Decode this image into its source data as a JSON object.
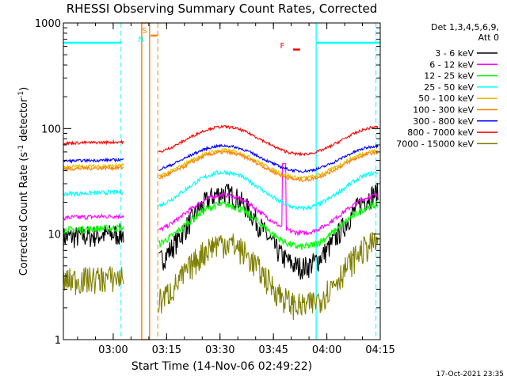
{
  "chart_data": {
    "type": "line",
    "title": "RHESSI Observing Summary Count Rates, Corrected",
    "xlabel": "Start Time (14-Nov-06 02:49:22)",
    "ylabel": "Corrected Count Rate (s",
    "ylabel_sup1": "-1",
    "ylabel_mid": " detector",
    "ylabel_sup2": "-1",
    "ylabel_end": ")",
    "x_range_minutes": [
      -4,
      85
    ],
    "y_range": [
      1,
      1000
    ],
    "y_scale": "log",
    "x_ticks": [
      {
        "t": 10,
        "label": "03:00"
      },
      {
        "t": 25,
        "label": "03:15"
      },
      {
        "t": 40,
        "label": "03:30"
      },
      {
        "t": 55,
        "label": "03:45"
      },
      {
        "t": 70,
        "label": "04:00"
      },
      {
        "t": 85,
        "label": "04:15"
      }
    ],
    "y_ticks": [
      {
        "v": 1,
        "label": "1"
      },
      {
        "v": 10,
        "label": "10"
      },
      {
        "v": 100,
        "label": "100"
      },
      {
        "v": 1000,
        "label": "1000"
      }
    ],
    "legend_header": [
      "Det 1,3,4,5,6,9,",
      "Att 0"
    ],
    "series": [
      {
        "name": "3 - 6 keV",
        "color": "#000000",
        "base": 11,
        "amp": 0.35,
        "noise": 0.25
      },
      {
        "name": "6 - 12 keV",
        "color": "#ff00ff",
        "base": 15.5,
        "amp": 0.18,
        "noise": 0.05
      },
      {
        "name": "12 - 25 keV",
        "color": "#00ff00",
        "base": 12,
        "amp": 0.2,
        "noise": 0.08
      },
      {
        "name": "25 - 50 keV",
        "color": "#00ffff",
        "base": 26,
        "amp": 0.17,
        "noise": 0.05
      },
      {
        "name": "50 - 100 keV",
        "color": "#e6c000",
        "base": 46,
        "amp": 0.13,
        "noise": 0.04
      },
      {
        "name": "100 - 300 keV",
        "color": "#ff8000",
        "base": 44,
        "amp": 0.13,
        "noise": 0.04
      },
      {
        "name": "300 - 800 keV",
        "color": "#0000ff",
        "base": 52,
        "amp": 0.12,
        "noise": 0.03
      },
      {
        "name": "800 - 7000 keV",
        "color": "#ff0000",
        "base": 77,
        "amp": 0.13,
        "noise": 0.03
      },
      {
        "name": "7000 - 15000 keV",
        "color": "#808000",
        "base": 4.2,
        "amp": 0.3,
        "noise": 0.3
      }
    ],
    "annotations": [
      {
        "label": "S",
        "color": "#ff8000"
      },
      {
        "label": "N",
        "color": "#00ffff"
      },
      {
        "label": "F",
        "color": "#ff0000"
      }
    ],
    "footer_date": "17-Oct-2021 23:35"
  }
}
